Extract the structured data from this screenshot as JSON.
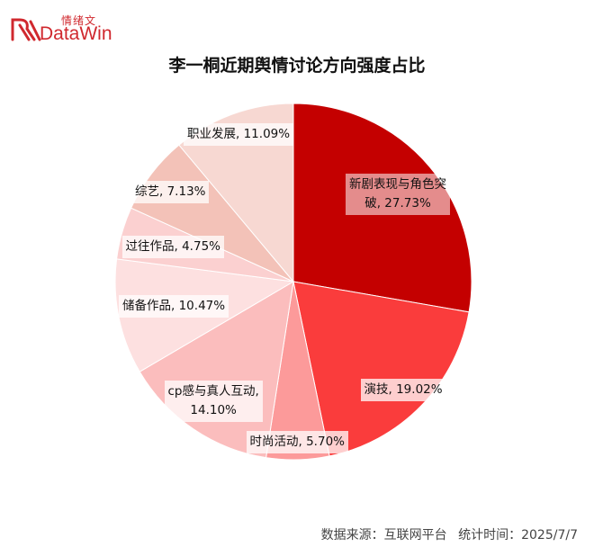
{
  "logo": {
    "cn": "情绪文",
    "en": "DataWin",
    "color": "#d0282e"
  },
  "chart_data": {
    "type": "pie",
    "title": "李一桐近期舆情讨论方向强度占比",
    "slices": [
      {
        "label": "新剧表现与角色突破",
        "value": 27.73,
        "display": "27.73%",
        "color": "#c40000"
      },
      {
        "label": "演技",
        "value": 19.02,
        "display": "19.02%",
        "color": "#fa3c3c"
      },
      {
        "label": "时尚活动",
        "value": 5.7,
        "display": "5.70%",
        "color": "#fc9a9a"
      },
      {
        "label": "cp感与真人互动",
        "value": 14.1,
        "display": "14.10%",
        "color": "#fbbdbd"
      },
      {
        "label": "储备作品",
        "value": 10.47,
        "display": "10.47%",
        "color": "#fde0e0"
      },
      {
        "label": "过往作品",
        "value": 4.75,
        "display": "4.75%",
        "color": "#fbd0d0"
      },
      {
        "label": "综艺",
        "value": 7.13,
        "display": "7.13%",
        "color": "#f3c2b8"
      },
      {
        "label": "职业发展",
        "value": 11.09,
        "display": "11.09%",
        "color": "#f7d8d2"
      }
    ]
  },
  "footer": {
    "source": "数据来源：互联网平台",
    "time": "统计时间：2025/7/7"
  }
}
